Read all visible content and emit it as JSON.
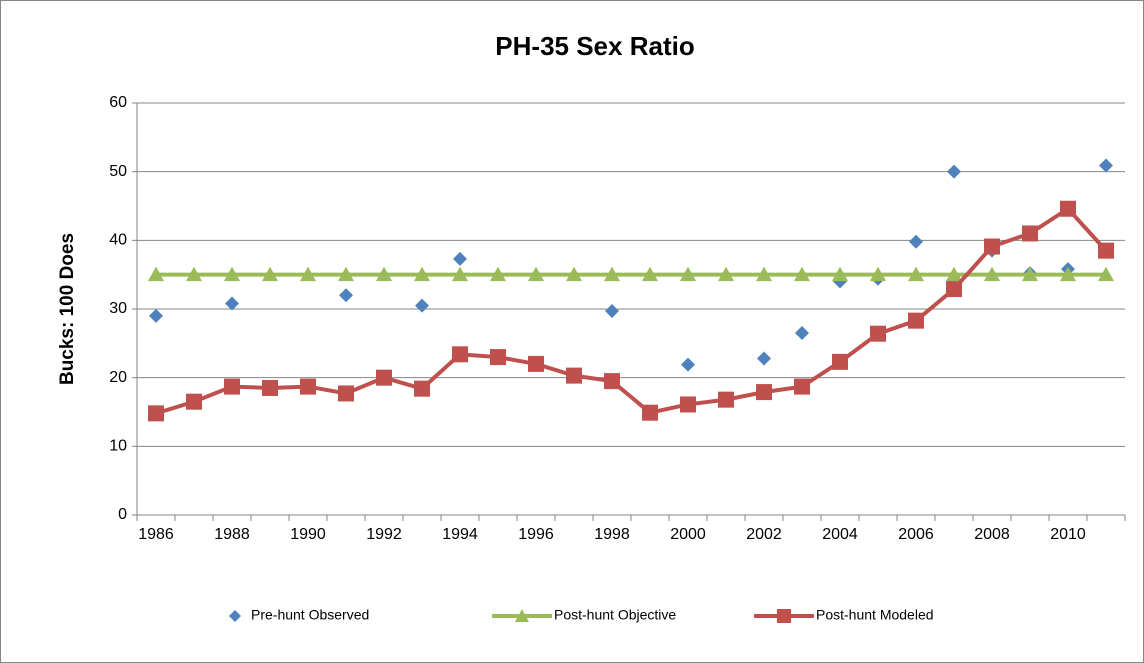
{
  "chart_data": {
    "type": "line",
    "title": "PH-35 Sex Ratio",
    "y_label": "Bucks: 100 Does",
    "categories": [
      "1986",
      null,
      "1988",
      null,
      "1990",
      null,
      "1992",
      null,
      "1994",
      null,
      "1996",
      null,
      "1998",
      null,
      "2000",
      null,
      "2002",
      null,
      "2004",
      null,
      "2006",
      null,
      "2008",
      null,
      "2010",
      null
    ],
    "ylim": [
      0,
      60
    ],
    "yticks": [
      0,
      10,
      20,
      30,
      40,
      50,
      60
    ],
    "grid": true,
    "legend": "bottom",
    "series": [
      {
        "name": "Pre-hunt Observed",
        "color": "#4f81bd",
        "marker": "diamond",
        "line": false,
        "values": [
          29,
          null,
          30.8,
          null,
          null,
          32,
          null,
          30.5,
          37.3,
          null,
          null,
          null,
          29.7,
          null,
          21.9,
          null,
          22.8,
          26.5,
          34,
          34.4,
          39.8,
          50,
          38.5,
          35.2,
          35.8,
          50.9
        ]
      },
      {
        "name": "Post-hunt  Objective",
        "color": "#9bbb59",
        "marker": "triangle",
        "line": true,
        "values": [
          35,
          35,
          35,
          35,
          35,
          35,
          35,
          35,
          35,
          35,
          35,
          35,
          35,
          35,
          35,
          35,
          35,
          35,
          35,
          35,
          35,
          35,
          35,
          35,
          35,
          35
        ]
      },
      {
        "name": "Post-hunt  Modeled",
        "color": "#c0504d",
        "marker": "square",
        "line": true,
        "values": [
          14.8,
          16.5,
          18.7,
          18.5,
          18.7,
          17.7,
          20,
          18.4,
          23.4,
          23,
          22,
          20.3,
          19.5,
          14.9,
          16.1,
          16.8,
          17.9,
          18.7,
          22.3,
          26.4,
          28.3,
          32.9,
          39.1,
          41,
          44.6,
          38.5
        ]
      }
    ]
  }
}
